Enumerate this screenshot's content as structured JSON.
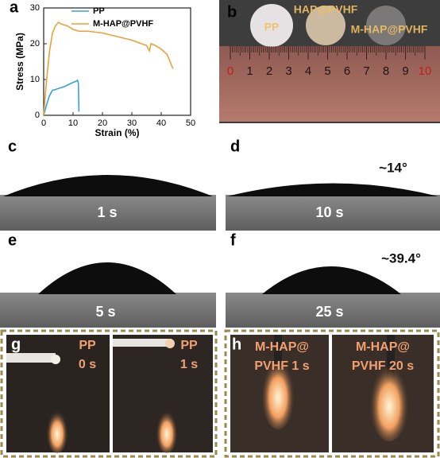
{
  "chart_data": {
    "type": "line",
    "xlabel": "Strain (%)",
    "ylabel": "Stress (MPa)",
    "xlim": [
      0,
      50
    ],
    "ylim": [
      0,
      30
    ],
    "xticks": [
      0,
      10,
      20,
      30,
      40,
      50
    ],
    "yticks": [
      0,
      10,
      20,
      30
    ],
    "grid": false,
    "legend": "top-left",
    "series": [
      {
        "name": "PP",
        "color": "#3aa0d8",
        "x": [
          0,
          1,
          2,
          3,
          4,
          5,
          7,
          9,
          10,
          11,
          11.5,
          11.8,
          12
        ],
        "values": [
          0,
          3,
          5.5,
          7,
          7.2,
          7.5,
          8,
          8.8,
          9.2,
          9.5,
          9.8,
          9,
          1
        ]
      },
      {
        "name": "M-HAP@PVHF",
        "color": "#e8a23a",
        "x": [
          0,
          1,
          2,
          3,
          4,
          5,
          6,
          8,
          10,
          12,
          15,
          20,
          25,
          30,
          35,
          36,
          36.5,
          38,
          40,
          42,
          43,
          44
        ],
        "values": [
          0,
          10,
          18,
          23,
          25,
          26,
          25.5,
          25,
          24,
          23.5,
          23.5,
          23,
          22,
          21,
          19.5,
          18,
          20,
          19.5,
          18.5,
          17,
          15,
          13
        ]
      }
    ]
  },
  "panel_labels": [
    "a",
    "b",
    "c",
    "d",
    "e",
    "f",
    "g",
    "h"
  ],
  "photo_b": {
    "samples": [
      "PP",
      "HAP@PVHF",
      "M-HAP@PVHF"
    ],
    "ruler": [
      "0",
      "1",
      "2",
      "3",
      "4",
      "5",
      "6",
      "7",
      "8",
      "9",
      "10"
    ]
  },
  "contact_angle": [
    {
      "time": "1 s"
    },
    {
      "time": "10 s",
      "angle": "~14°"
    },
    {
      "time": "5 s"
    },
    {
      "time": "25 s",
      "angle": "~39.4°"
    }
  ],
  "flame_test": [
    {
      "lines": [
        "PP",
        "0 s"
      ]
    },
    {
      "lines": [
        "PP",
        "1 s"
      ]
    },
    {
      "lines": [
        "M-HAP@",
        "PVHF 1 s"
      ]
    },
    {
      "lines": [
        "M-HAP@",
        "PVHF 20 s"
      ]
    }
  ]
}
